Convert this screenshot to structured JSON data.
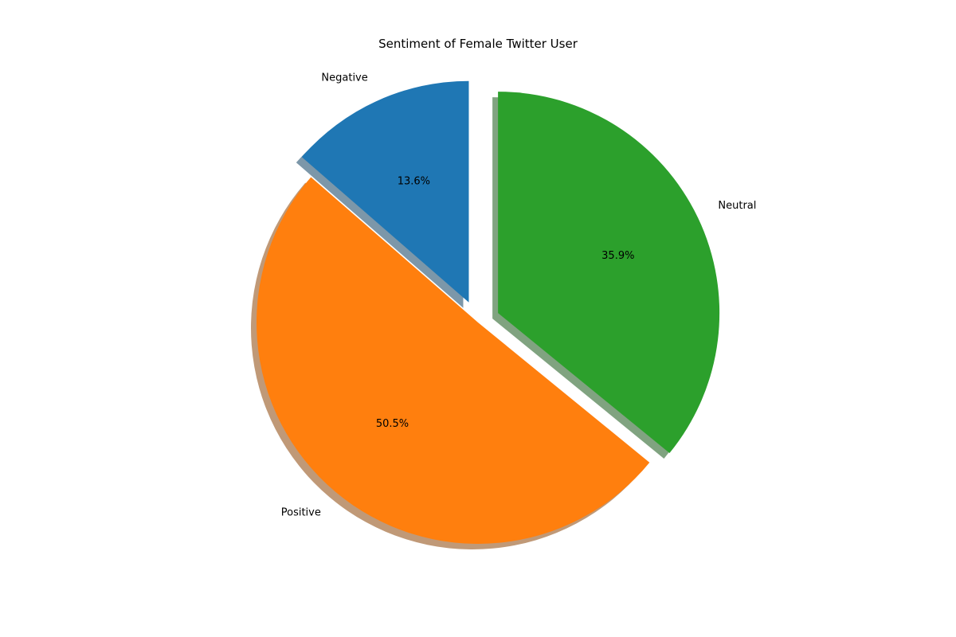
{
  "chart_data": {
    "type": "pie",
    "title": "Sentiment of Female Twitter User",
    "slices": [
      {
        "label": "Negative",
        "value": 13.6,
        "value_label": "13.6%",
        "color": "#1f77b4",
        "exploded": true
      },
      {
        "label": "Positive",
        "value": 50.5,
        "value_label": "50.5%",
        "color": "#ff7f0e",
        "exploded": false
      },
      {
        "label": "Neutral",
        "value": 35.9,
        "value_label": "35.9%",
        "color": "#2ca02c",
        "exploded": true
      }
    ],
    "start_angle_deg": 90,
    "direction": "counterclockwise",
    "shadow": true
  }
}
